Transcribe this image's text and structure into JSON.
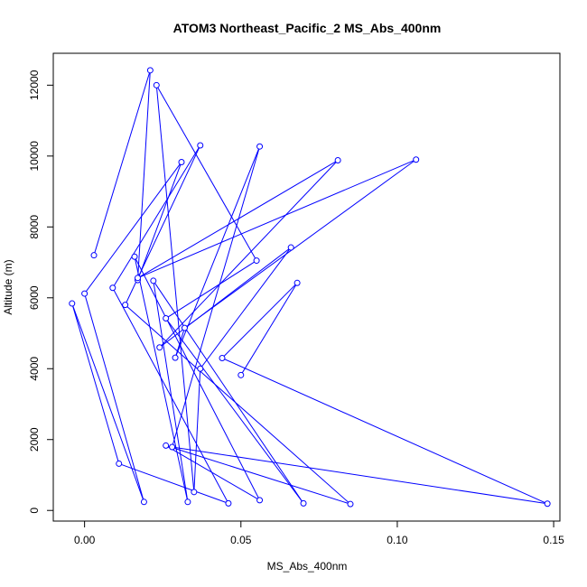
{
  "chart_data": {
    "type": "line",
    "title": "ATOM3 Northeast_Pacific_2 MS_Abs_400nm",
    "xlabel": "MS_Abs_400nm",
    "ylabel": "Altitude (m)",
    "xlim": [
      -0.01,
      0.152
    ],
    "ylim": [
      -300,
      12900
    ],
    "x_ticks": [
      0.0,
      0.05,
      0.1,
      0.15
    ],
    "x_tick_labels": [
      "0.00",
      "0.05",
      "0.10",
      "0.15"
    ],
    "y_ticks": [
      0,
      2000,
      4000,
      6000,
      8000,
      10000,
      12000
    ],
    "y_tick_labels": [
      "0",
      "2000",
      "4000",
      "6000",
      "8000",
      "10000",
      "12000"
    ],
    "grid": false,
    "series": [
      {
        "color": "#0000ff",
        "marker": "open-circle",
        "points": [
          {
            "x": 0.003,
            "y": 7200
          },
          {
            "x": 0.021,
            "y": 12420
          },
          {
            "x": 0.017,
            "y": 6500
          },
          {
            "x": 0.031,
            "y": 9830
          },
          {
            "x": 0.0,
            "y": 6120
          },
          {
            "x": 0.019,
            "y": 240
          },
          {
            "x": -0.004,
            "y": 5840
          },
          {
            "x": 0.011,
            "y": 1320
          },
          {
            "x": 0.046,
            "y": 200
          },
          {
            "x": 0.009,
            "y": 6280
          },
          {
            "x": 0.037,
            "y": 10300
          },
          {
            "x": 0.013,
            "y": 5800
          },
          {
            "x": 0.085,
            "y": 180
          },
          {
            "x": 0.026,
            "y": 1830
          },
          {
            "x": 0.056,
            "y": 290
          },
          {
            "x": 0.016,
            "y": 7160
          },
          {
            "x": 0.033,
            "y": 240
          },
          {
            "x": 0.022,
            "y": 6480
          },
          {
            "x": 0.07,
            "y": 200
          },
          {
            "x": 0.026,
            "y": 5420
          },
          {
            "x": 0.055,
            "y": 7050
          },
          {
            "x": 0.023,
            "y": 12000
          },
          {
            "x": 0.035,
            "y": 520
          },
          {
            "x": 0.037,
            "y": 4000
          },
          {
            "x": 0.066,
            "y": 7420
          },
          {
            "x": 0.024,
            "y": 4600
          },
          {
            "x": 0.081,
            "y": 9880
          },
          {
            "x": 0.017,
            "y": 6560
          },
          {
            "x": 0.106,
            "y": 9900
          },
          {
            "x": 0.032,
            "y": 5150
          },
          {
            "x": 0.029,
            "y": 4310
          },
          {
            "x": 0.056,
            "y": 10270
          },
          {
            "x": 0.028,
            "y": 1790
          },
          {
            "x": 0.148,
            "y": 190
          },
          {
            "x": 0.044,
            "y": 4300
          },
          {
            "x": 0.068,
            "y": 6420
          },
          {
            "x": 0.05,
            "y": 3820
          }
        ]
      }
    ]
  }
}
